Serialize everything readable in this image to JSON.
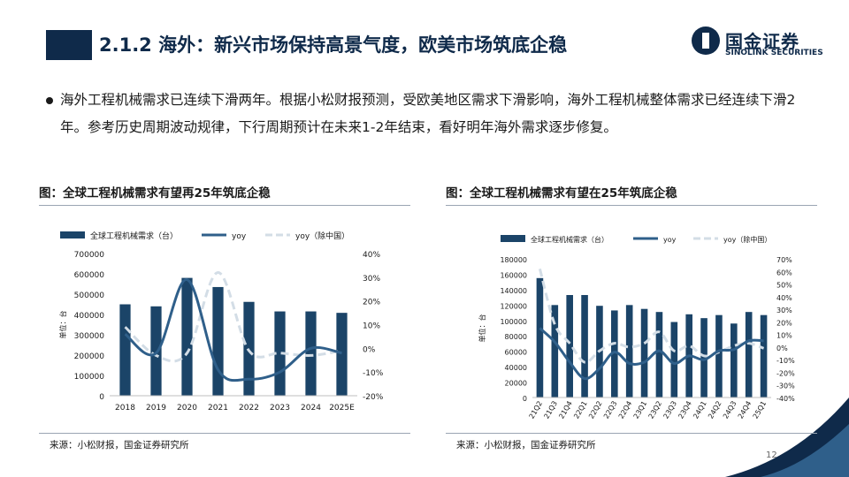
{
  "title": "2.1.2 海外：新兴市场保持高景气度，欧美市场筑底企稳",
  "logo": {
    "cn": "国金证券",
    "en": "SINOLINK SECURITIES"
  },
  "bullet": "海外工程机械需求已连续下滑两年。根据小松财报预测，受欧美地区需求下滑影响，海外工程机械整体需求已经连续下滑2年。参考历史周期波动规律，下行周期预计在未来1-2年结束，看好明年海外需求逐步修复。",
  "page_number": "12",
  "colors": {
    "bar": "#1b4468",
    "yoy": "#2f5f8a",
    "yoy_ex_china": "#d3dde6",
    "brand": "#0f2a4a"
  },
  "figures": [
    {
      "title": "图：全球工程机械需求有望再25年筑底企稳",
      "source": "来源：小松财报，国金证券研究所"
    },
    {
      "title": "图：全球工程机械需求有望在25年筑底企稳",
      "source": "来源：小松财报，国金证券研究所"
    }
  ],
  "chart_data": [
    {
      "type": "bar",
      "ylabel": "单位：台",
      "legend": [
        "全球工程机械需求（台）",
        "yoy",
        "yoy（除中国）"
      ],
      "legend_position": "top",
      "categories": [
        "2018",
        "2019",
        "2020",
        "2021",
        "2022",
        "2023",
        "2024",
        "2025E"
      ],
      "ylim": [
        0,
        700000
      ],
      "yticks": [
        "700000",
        "600000",
        "500000",
        "400000",
        "300000",
        "200000",
        "100000",
        "0"
      ],
      "y2lim": [
        -20,
        40
      ],
      "y2ticks": [
        "40%",
        "30%",
        "20%",
        "10%",
        "0%",
        "-10%",
        "-20%"
      ],
      "series": [
        {
          "name": "全球工程机械需求（台）",
          "type": "bar",
          "values": [
            450000,
            440000,
            580000,
            535000,
            462000,
            415000,
            415000,
            408000
          ]
        },
        {
          "name": "yoy",
          "type": "line",
          "values": [
            6,
            -2,
            29,
            -9,
            -13,
            -10,
            0,
            -2
          ]
        },
        {
          "name": "yoy（除中国）",
          "type": "line",
          "values": [
            9,
            -3,
            -2,
            32,
            -1,
            -2,
            -3,
            -1
          ]
        }
      ]
    },
    {
      "type": "bar",
      "ylabel": "单位：台",
      "legend": [
        "全球工程机械需求（台）",
        "yoy",
        "yoy（除中国）"
      ],
      "legend_position": "top",
      "categories": [
        "21Q2",
        "21Q3",
        "21Q4",
        "22Q1",
        "22Q2",
        "22Q3",
        "22Q4",
        "23Q1",
        "23Q2",
        "23Q3",
        "23Q4",
        "24Q1",
        "24Q2",
        "24Q3",
        "24Q4",
        "25Q1"
      ],
      "ylim": [
        0,
        180000
      ],
      "yticks": [
        "180000",
        "160000",
        "140000",
        "120000",
        "100000",
        "80000",
        "60000",
        "40000",
        "20000",
        "0"
      ],
      "y2lim": [
        -40,
        70
      ],
      "y2ticks": [
        "70%",
        "60%",
        "50%",
        "40%",
        "30%",
        "20%",
        "10%",
        "0%",
        "-10%",
        "-20%",
        "-30%",
        "-40%"
      ],
      "series": [
        {
          "name": "全球工程机械需求（台）",
          "type": "bar",
          "values": [
            155000,
            120000,
            133000,
            133000,
            119000,
            113000,
            120000,
            115000,
            111000,
            98000,
            108000,
            103000,
            107000,
            96000,
            111000,
            107000
          ]
        },
        {
          "name": "yoy",
          "type": "line",
          "values": [
            15,
            4,
            -12,
            -25,
            -17,
            -4,
            -13,
            -12,
            -3,
            -13,
            -7,
            -10,
            -3,
            -2,
            5,
            5
          ]
        },
        {
          "name": "yoy（除中国）",
          "type": "line",
          "values": [
            62,
            18,
            3,
            -12,
            -3,
            3,
            0,
            3,
            12,
            -3,
            1,
            -7,
            -4,
            1,
            3,
            -1
          ]
        }
      ]
    }
  ]
}
